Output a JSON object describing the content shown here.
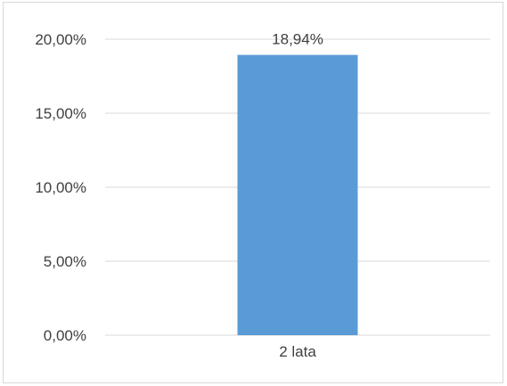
{
  "chart_data": {
    "type": "bar",
    "categories": [
      "2 lata"
    ],
    "values": [
      18.94
    ],
    "value_labels": [
      "18,94%"
    ],
    "y_ticks": [
      0,
      5,
      10,
      15,
      20
    ],
    "y_tick_labels": [
      "0,00%",
      "5,00%",
      "10,00%",
      "15,00%",
      "20,00%"
    ],
    "ylim": [
      0,
      20
    ],
    "grid": true,
    "legend": "none",
    "title": "",
    "xlabel": "",
    "ylabel": "",
    "colors": {
      "bar": "#5b9bd5",
      "grid": "#d9d9d9",
      "text": "#404040"
    }
  }
}
